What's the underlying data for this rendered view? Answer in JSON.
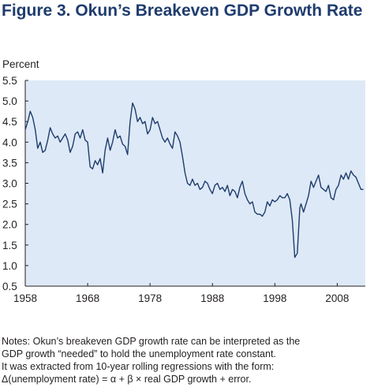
{
  "title": "Figure 3. Okun’s Breakeven GDP Growth Rate",
  "notes": [
    "Notes: Okun’s breakeven GDP growth rate can be interpreted as the",
    "GDP growth “needed” to hold the unemployment rate constant.",
    "It was extracted from 10-year rolling regressions with the form:",
    "Δ(unemployment rate) = α + β × real GDP growth + error."
  ],
  "colors": {
    "title": "#1f3c6e",
    "line": "#1f3c6e",
    "plot_bg": "#dde9f6",
    "axis": "#231f20"
  },
  "chart_data": {
    "type": "line",
    "ylabel": "Percent",
    "xlabel": "",
    "xlim": [
      1958,
      2012.5
    ],
    "ylim": [
      0.5,
      5.5
    ],
    "x_ticks": [
      1958,
      1968,
      1978,
      1988,
      1998,
      2008
    ],
    "y_ticks": [
      "0.5",
      "1.0",
      "1.5",
      "2.0",
      "2.5",
      "3.0",
      "3.5",
      "4.0",
      "4.5",
      "5.0",
      "5.5"
    ],
    "grid": false,
    "series": [
      {
        "x": [
          1958.0,
          1958.4,
          1958.8,
          1959.2,
          1959.6,
          1960.0,
          1960.4,
          1960.8,
          1961.2,
          1961.6,
          1962.0,
          1962.4,
          1962.8,
          1963.2,
          1963.6,
          1964.0,
          1964.4,
          1964.8,
          1965.2,
          1965.6,
          1966.0,
          1966.4,
          1966.8,
          1967.2,
          1967.6,
          1968.0,
          1968.4,
          1968.8,
          1969.2,
          1969.6,
          1970.0,
          1970.4,
          1970.8,
          1971.2,
          1971.6,
          1972.0,
          1972.4,
          1972.8,
          1973.2,
          1973.6,
          1974.0,
          1974.4,
          1974.8,
          1975.2,
          1975.6,
          1976.0,
          1976.4,
          1976.8,
          1977.2,
          1977.6,
          1978.0,
          1978.4,
          1978.8,
          1979.2,
          1979.6,
          1980.0,
          1980.4,
          1980.8,
          1981.2,
          1981.6,
          1982.0,
          1982.4,
          1982.8,
          1983.2,
          1983.6,
          1984.0,
          1984.4,
          1984.8,
          1985.2,
          1985.6,
          1986.0,
          1986.4,
          1986.8,
          1987.2,
          1987.6,
          1988.0,
          1988.4,
          1988.8,
          1989.2,
          1989.6,
          1990.0,
          1990.4,
          1990.8,
          1991.2,
          1991.6,
          1992.0,
          1992.4,
          1992.8,
          1993.2,
          1993.6,
          1994.0,
          1994.4,
          1994.8,
          1995.2,
          1995.6,
          1996.0,
          1996.4,
          1996.8,
          1997.2,
          1997.6,
          1998.0,
          1998.4,
          1998.8,
          1999.2,
          1999.6,
          2000.0,
          2000.4,
          2000.8,
          2001.2,
          2001.6,
          2002.0,
          2002.2,
          2002.6,
          2003.0,
          2003.4,
          2003.8,
          2004.2,
          2004.6,
          2005.0,
          2005.4,
          2005.8,
          2006.2,
          2006.6,
          2007.0,
          2007.4,
          2007.8,
          2008.2,
          2008.6,
          2009.0,
          2009.4,
          2009.8,
          2010.2,
          2010.6,
          2011.0,
          2011.4,
          2011.8,
          2012.2
        ],
        "values": [
          4.3,
          4.5,
          4.75,
          4.6,
          4.3,
          3.85,
          4.0,
          3.75,
          3.8,
          4.05,
          4.35,
          4.2,
          4.1,
          4.15,
          4.0,
          4.1,
          4.2,
          4.05,
          3.75,
          3.9,
          4.2,
          4.25,
          4.1,
          4.3,
          4.05,
          4.0,
          3.4,
          3.35,
          3.55,
          3.45,
          3.6,
          3.25,
          3.8,
          4.1,
          3.8,
          4.0,
          4.3,
          4.1,
          4.15,
          3.95,
          3.9,
          3.7,
          4.5,
          4.95,
          4.8,
          4.5,
          4.6,
          4.45,
          4.5,
          4.2,
          4.3,
          4.6,
          4.45,
          4.5,
          4.3,
          4.1,
          4.0,
          4.1,
          3.95,
          3.85,
          4.25,
          4.15,
          4.0,
          3.65,
          3.25,
          3.0,
          2.95,
          3.1,
          2.95,
          3.0,
          2.85,
          2.9,
          3.05,
          3.0,
          2.85,
          2.75,
          2.95,
          3.0,
          2.85,
          2.9,
          2.8,
          2.95,
          2.7,
          2.85,
          2.8,
          2.65,
          2.9,
          3.05,
          2.75,
          2.6,
          2.5,
          2.55,
          2.3,
          2.25,
          2.25,
          2.2,
          2.3,
          2.55,
          2.45,
          2.6,
          2.55,
          2.6,
          2.7,
          2.65,
          2.65,
          2.75,
          2.6,
          2.1,
          1.2,
          1.3,
          2.4,
          2.5,
          2.3,
          2.5,
          2.7,
          3.05,
          2.9,
          3.05,
          3.2,
          2.9,
          2.85,
          2.8,
          2.95,
          2.65,
          2.6,
          2.85,
          2.95,
          3.2,
          3.1,
          3.25,
          3.1,
          3.3,
          3.2,
          3.15,
          3.0,
          2.85,
          2.85
        ]
      }
    ]
  }
}
